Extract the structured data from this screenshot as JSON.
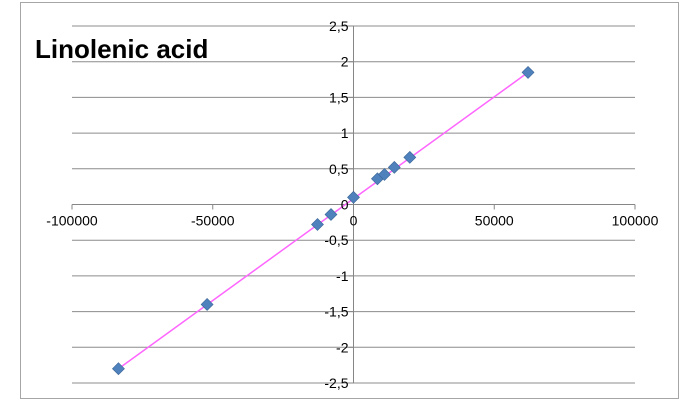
{
  "chart_data": {
    "type": "scatter",
    "title": "Linolenic acid",
    "xlabel": "",
    "ylabel": "",
    "xlim": [
      -100000,
      100000
    ],
    "ylim": [
      -2.5,
      2.5
    ],
    "x_ticks": [
      -100000,
      -50000,
      0,
      50000,
      100000
    ],
    "x_tick_labels": [
      "-100000",
      "-50000",
      "0",
      "50000",
      "100000"
    ],
    "y_ticks": [
      2.5,
      2,
      1.5,
      1,
      0.5,
      0,
      -0.5,
      -1,
      -1.5,
      -2,
      -2.5
    ],
    "y_tick_labels": [
      "2,5",
      "2",
      "1,5",
      "1",
      "0,5",
      "0",
      "-0,5",
      "-1",
      "-1,5",
      "-2",
      "-2,5"
    ],
    "grid": "horizontal",
    "legend": "none",
    "series": [
      {
        "x": [
          -83500,
          -52000,
          -12800,
          -8000,
          0,
          8500,
          11000,
          14500,
          20000,
          62000
        ],
        "y": [
          -2.3,
          -1.4,
          -0.28,
          -0.14,
          0.1,
          0.36,
          0.42,
          0.52,
          0.66,
          1.85
        ],
        "marker_color": "#4f81bd",
        "marker": "diamond"
      }
    ],
    "trendline": {
      "x": [
        -83500,
        62000
      ],
      "y": [
        -2.3,
        1.85
      ],
      "color": "#ff66ff"
    }
  }
}
